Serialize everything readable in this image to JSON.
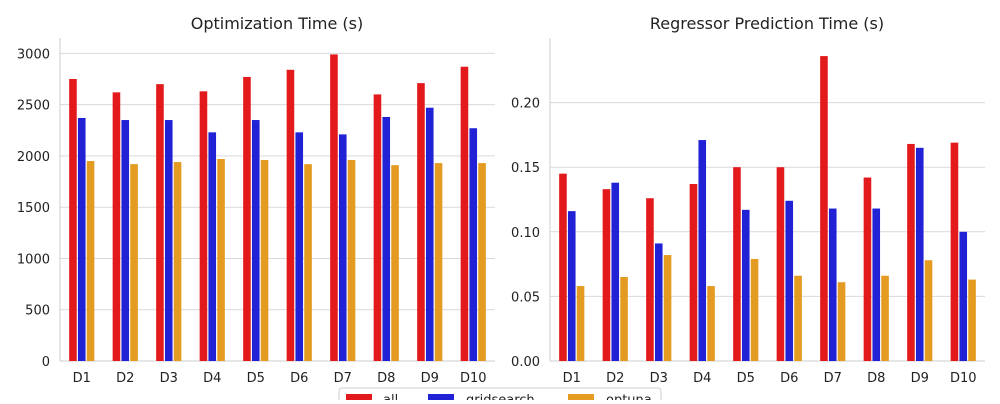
{
  "chart_data": [
    {
      "type": "bar",
      "title": "Optimization Time (s)",
      "categories": [
        "D1",
        "D2",
        "D3",
        "D4",
        "D5",
        "D6",
        "D7",
        "D8",
        "D9",
        "D10"
      ],
      "ylim": [
        0,
        3150
      ],
      "yticks": [
        0,
        500,
        1000,
        1500,
        2000,
        2500,
        3000
      ],
      "ytick_labels": [
        "0",
        "500",
        "1000",
        "1500",
        "2000",
        "2500",
        "3000"
      ],
      "grid": "y",
      "series": [
        {
          "name": "all",
          "values": [
            2750,
            2620,
            2700,
            2630,
            2770,
            2840,
            2990,
            2600,
            2710,
            2870
          ]
        },
        {
          "name": "gridsearch",
          "values": [
            2370,
            2350,
            2350,
            2230,
            2350,
            2230,
            2210,
            2380,
            2470,
            2270
          ]
        },
        {
          "name": "optuna",
          "values": [
            1950,
            1920,
            1940,
            1970,
            1960,
            1920,
            1960,
            1910,
            1930,
            1930
          ]
        }
      ]
    },
    {
      "type": "bar",
      "title": "Regressor Prediction Time (s)",
      "categories": [
        "D1",
        "D2",
        "D3",
        "D4",
        "D5",
        "D6",
        "D7",
        "D8",
        "D9",
        "D10"
      ],
      "ylim": [
        0,
        0.25
      ],
      "yticks": [
        0,
        0.05,
        0.1,
        0.15,
        0.2
      ],
      "ytick_labels": [
        "0.00",
        "0.05",
        "0.10",
        "0.15",
        "0.20"
      ],
      "grid": "y",
      "series": [
        {
          "name": "all",
          "values": [
            0.145,
            0.133,
            0.126,
            0.137,
            0.15,
            0.15,
            0.236,
            0.142,
            0.168,
            0.169
          ]
        },
        {
          "name": "gridsearch",
          "values": [
            0.116,
            0.138,
            0.091,
            0.171,
            0.117,
            0.124,
            0.118,
            0.118,
            0.165,
            0.1
          ]
        },
        {
          "name": "optuna",
          "values": [
            0.058,
            0.065,
            0.082,
            0.058,
            0.079,
            0.066,
            0.061,
            0.066,
            0.078,
            0.063
          ]
        }
      ]
    }
  ],
  "legend": {
    "placement": "bottom-center",
    "items": [
      {
        "label": "all",
        "color": "#e31a1c"
      },
      {
        "label": "gridsearch",
        "color": "#2121d6"
      },
      {
        "label": "optuna",
        "color": "#e39b22"
      }
    ]
  },
  "colors": {
    "all": "#e31a1c",
    "gridsearch": "#2121d6",
    "optuna": "#e39b22",
    "grid": "#d9d9d9",
    "axis": "#cccccc"
  }
}
